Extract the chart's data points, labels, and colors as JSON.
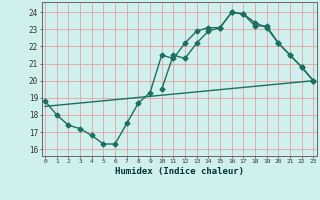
{
  "line1_x": [
    0,
    1,
    2,
    3,
    4,
    5,
    6,
    7,
    8,
    9,
    10,
    11,
    12,
    13,
    14,
    15,
    16,
    17,
    18,
    19,
    20,
    21,
    22,
    23
  ],
  "line1_y": [
    18.8,
    18.0,
    17.4,
    17.2,
    16.8,
    16.3,
    16.3,
    17.5,
    18.7,
    19.3,
    21.5,
    21.3,
    22.2,
    22.9,
    23.1,
    23.1,
    24.0,
    23.9,
    23.4,
    23.1,
    22.2,
    21.5,
    20.8,
    20.0
  ],
  "line2_x": [
    10,
    11,
    12,
    13,
    14,
    15,
    16,
    17,
    18,
    19,
    20,
    21,
    22,
    23
  ],
  "line2_y": [
    19.5,
    21.5,
    21.3,
    22.2,
    22.9,
    23.1,
    24.0,
    23.9,
    23.2,
    23.2,
    22.2,
    21.5,
    20.8,
    20.0
  ],
  "line3_x": [
    0,
    23
  ],
  "line3_y": [
    18.5,
    20.0
  ],
  "line_color": "#1a7060",
  "bg_color": "#cff0ec",
  "grid_color": "#e8a0a0",
  "xlabel": "Humidex (Indice chaleur)",
  "yticks": [
    16,
    17,
    18,
    19,
    20,
    21,
    22,
    23,
    24
  ],
  "xticks": [
    0,
    1,
    2,
    3,
    4,
    5,
    6,
    7,
    8,
    9,
    10,
    11,
    12,
    13,
    14,
    15,
    16,
    17,
    18,
    19,
    20,
    21,
    22,
    23
  ],
  "xlim": [
    -0.3,
    23.3
  ],
  "ylim": [
    15.6,
    24.6
  ],
  "marker": "D",
  "markersize": 2.5,
  "linewidth": 1.0
}
